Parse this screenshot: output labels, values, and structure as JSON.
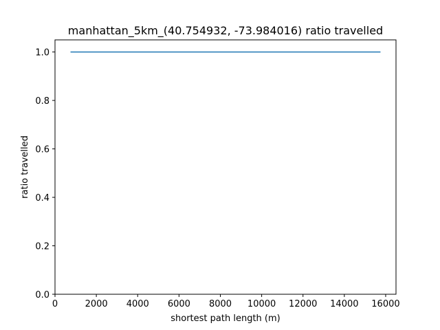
{
  "chart_data": {
    "type": "line",
    "title": "manhattan_5km_(40.754932, -73.984016) ratio travelled",
    "xlabel": "shortest path length (m)",
    "ylabel": "ratio travelled",
    "xlim": [
      0,
      16500
    ],
    "ylim": [
      0,
      1.05
    ],
    "x_ticks": [
      0,
      2000,
      4000,
      6000,
      8000,
      10000,
      12000,
      14000,
      16000
    ],
    "x_tick_labels": [
      "0",
      "2000",
      "4000",
      "6000",
      "8000",
      "10000",
      "12000",
      "14000",
      "16000"
    ],
    "y_ticks": [
      0.0,
      0.2,
      0.4,
      0.6,
      0.8,
      1.0
    ],
    "y_tick_labels": [
      "0.0",
      "0.2",
      "0.4",
      "0.6",
      "0.8",
      "1.0"
    ],
    "grid": false,
    "legend": "none",
    "series": [
      {
        "color": "#1f77b4",
        "x": [
          750,
          15750
        ],
        "y": [
          1.0,
          1.0
        ]
      }
    ]
  }
}
